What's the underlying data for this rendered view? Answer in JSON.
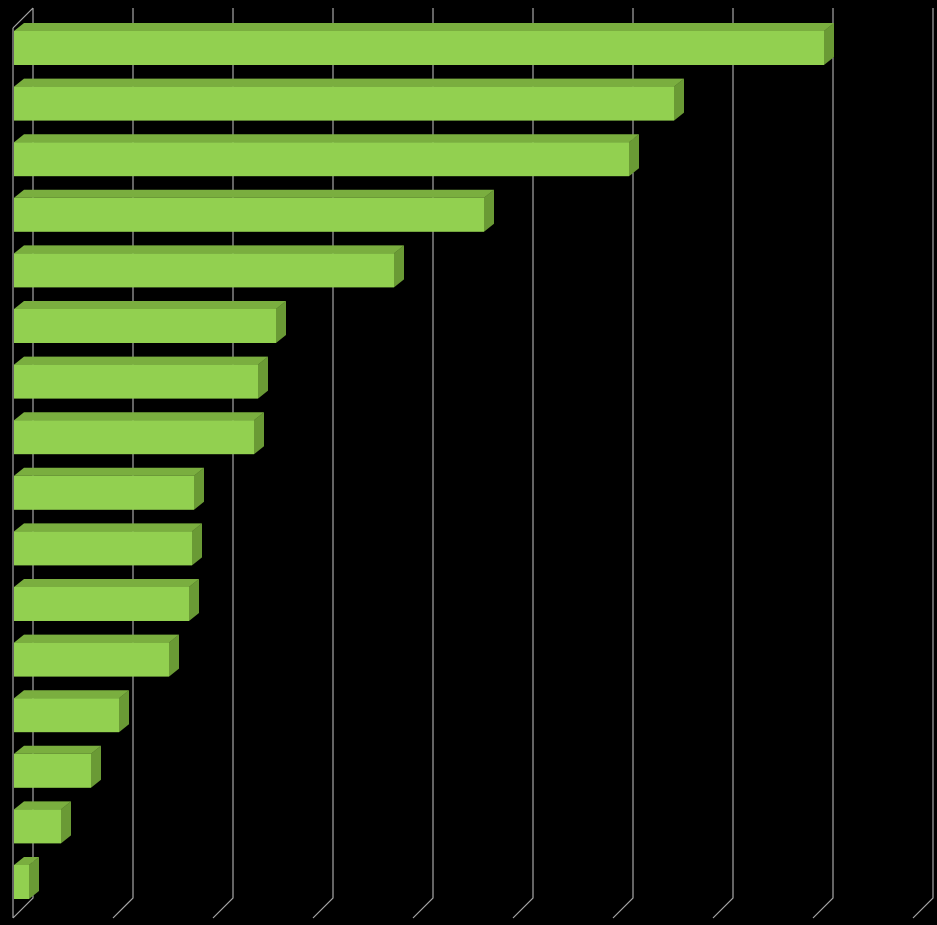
{
  "chart_data": {
    "type": "bar",
    "orientation": "horizontal",
    "style": "3d",
    "title": "",
    "xlabel": "",
    "ylabel": "",
    "categories": [
      "",
      "",
      "",
      "",
      "",
      "",
      "",
      "",
      "",
      "",
      "",
      "",
      "",
      "",
      "",
      ""
    ],
    "values": [
      8.1,
      6.6,
      6.15,
      4.7,
      3.8,
      2.62,
      2.44,
      2.4,
      1.8,
      1.78,
      1.75,
      1.55,
      1.05,
      0.77,
      0.47,
      0.15
    ],
    "xlim": [
      0,
      9
    ],
    "grid": true,
    "legend": "none",
    "colors": {
      "background": "#000000",
      "bar_front": "#92D050",
      "bar_top": "#7AAE3F",
      "bar_side": "#6A9A35",
      "grid": "#A6A6A6"
    }
  }
}
